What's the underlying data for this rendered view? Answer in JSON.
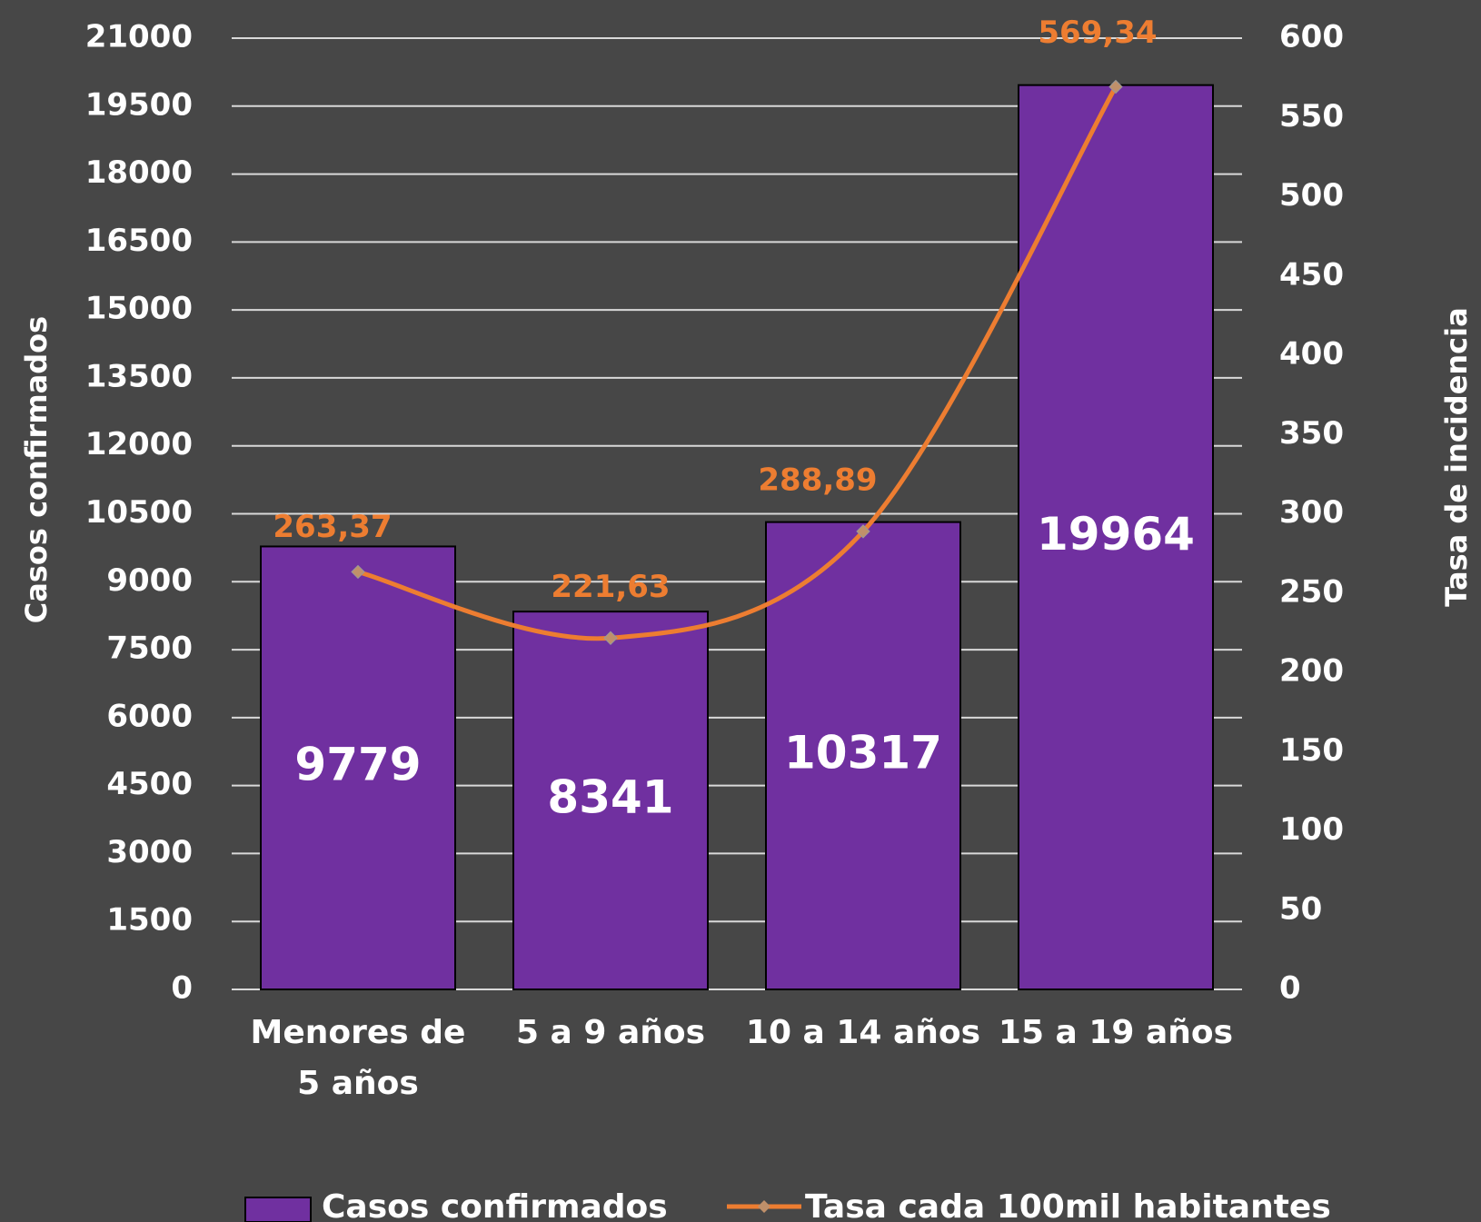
{
  "chart_data": {
    "type": "bar",
    "categories": [
      "Menores de 5 años",
      "5 a 9 años",
      "10 a 14 años",
      "15 a 19 años"
    ],
    "series": [
      {
        "name": "Casos confirmados",
        "color": "#7030a0",
        "values": [
          9779,
          8341,
          10317,
          19964
        ]
      },
      {
        "name": "Tasa cada 100mil habitantes",
        "type": "line",
        "axis": "y2",
        "color": "#ed7d31",
        "values": [
          263.37,
          221.63,
          288.89,
          569.34
        ],
        "value_labels": [
          "263,37",
          "221,63",
          "288,89",
          "569,34"
        ]
      }
    ],
    "ylabel": "Casos confirmados",
    "y2label": "Tasa de incidencia",
    "ylim": [
      0,
      21000
    ],
    "yticks": [
      0,
      1500,
      3000,
      4500,
      6000,
      7500,
      9000,
      10500,
      12000,
      13500,
      15000,
      16500,
      18000,
      19500,
      21000
    ],
    "y2lim": [
      0,
      600
    ],
    "y2ticks": [
      0,
      50,
      100,
      150,
      200,
      250,
      300,
      350,
      400,
      450,
      500,
      550,
      600
    ],
    "grid": true,
    "legend": "bottom"
  }
}
